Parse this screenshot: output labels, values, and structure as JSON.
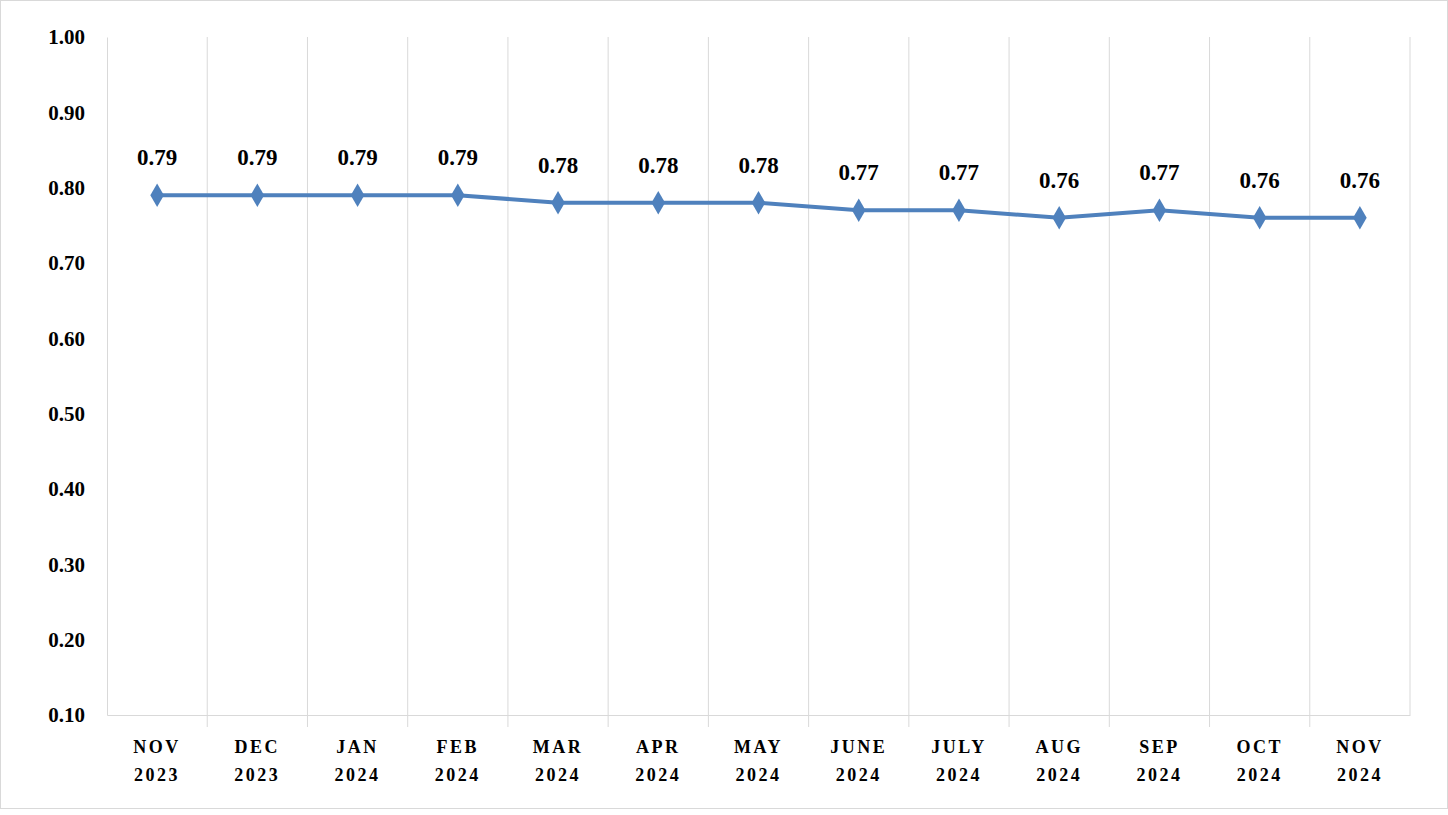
{
  "chart_data": {
    "type": "line",
    "categories": [
      "NOV 2023",
      "DEC 2023",
      "JAN 2024",
      "FEB 2024",
      "MAR 2024",
      "APR 2024",
      "MAY 2024",
      "JUNE 2024",
      "JULY 2024",
      "AUG 2024",
      "SEP 2024",
      "OCT 2024",
      "NOV 2024"
    ],
    "values": [
      0.79,
      0.79,
      0.79,
      0.79,
      0.78,
      0.78,
      0.78,
      0.77,
      0.77,
      0.76,
      0.77,
      0.76,
      0.76
    ],
    "color": "#4f81bd",
    "marker": "diamond",
    "ylim": [
      0.1,
      1.0
    ],
    "yticks": [
      {
        "value": 0.1,
        "label": "0.10"
      },
      {
        "value": 0.2,
        "label": "0.20"
      },
      {
        "value": 0.3,
        "label": "0.30"
      },
      {
        "value": 0.4,
        "label": "0.40"
      },
      {
        "value": 0.5,
        "label": "0.50"
      },
      {
        "value": 0.6,
        "label": "0.60"
      },
      {
        "value": 0.7,
        "label": "0.70"
      },
      {
        "value": 0.8,
        "label": "0.80"
      },
      {
        "value": 0.9,
        "label": "0.90"
      },
      {
        "value": 1.0,
        "label": "1.00"
      }
    ],
    "grid": true,
    "data_labels": true
  }
}
